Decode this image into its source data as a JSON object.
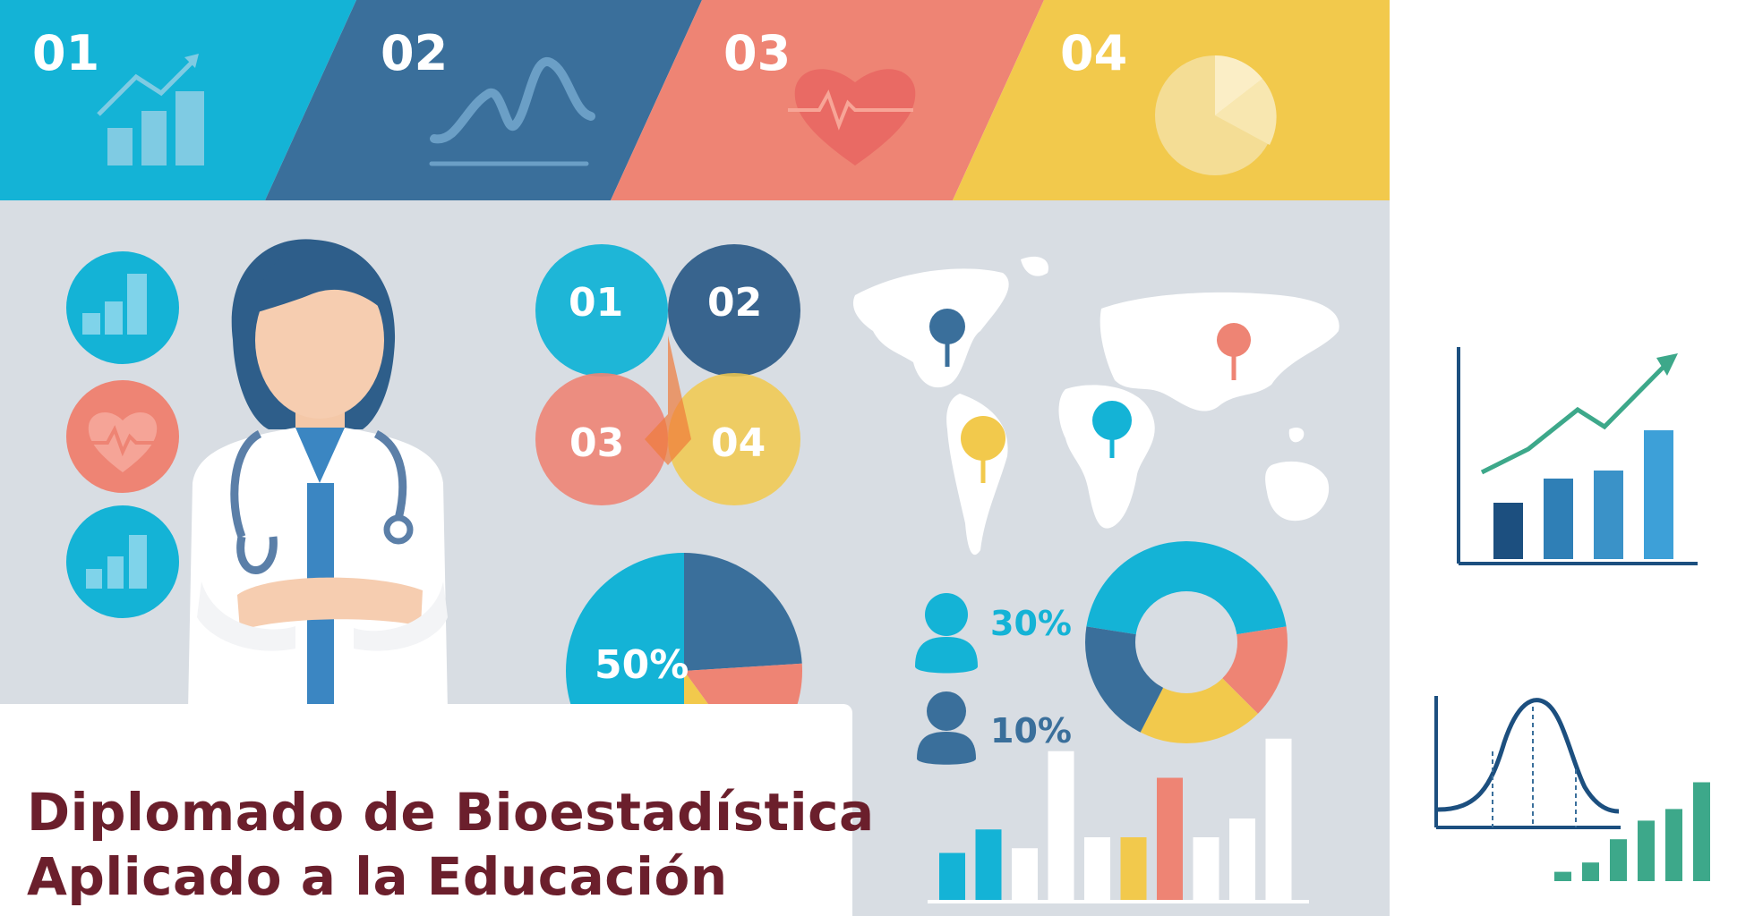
{
  "colors": {
    "cyan": "#14b3d6",
    "navy": "#3a6f9b",
    "coral": "#ee8474",
    "yellow": "#f2c94c",
    "panel_gray": "#d8dde3",
    "title_maroon": "#6b1f2c",
    "dark_blue": "#1c4f7f",
    "green": "#3da88a"
  },
  "banner": {
    "steps": [
      {
        "number": "01",
        "icon": "growth-chart-icon",
        "color": "#14b3d6"
      },
      {
        "number": "02",
        "icon": "wave-line-icon",
        "color": "#3a6f9b"
      },
      {
        "number": "03",
        "icon": "heartbeat-icon",
        "color": "#ee8474"
      },
      {
        "number": "04",
        "icon": "pie-chart-icon",
        "color": "#f2c94c"
      }
    ]
  },
  "side_icons": [
    "bar-chart-icon",
    "heart-monitor-icon",
    "bar-chart-icon"
  ],
  "venn": {
    "labels": [
      "01",
      "02",
      "03",
      "04"
    ]
  },
  "pie": {
    "label": "50%",
    "slices": [
      50,
      24,
      16,
      10
    ]
  },
  "people_stats": [
    {
      "value": "30%",
      "icon": "person-icon",
      "color": "#14b3d6"
    },
    {
      "value": "10%",
      "icon": "person-icon",
      "color": "#3a6f9b"
    }
  ],
  "donut": {
    "slices": [
      45,
      20,
      20,
      15
    ]
  },
  "bars": {
    "values": [
      30,
      45,
      33,
      95,
      40,
      40,
      78,
      40,
      52,
      103
    ],
    "colors": [
      "#14b3d6",
      "#14b3d6",
      "#ffffff",
      "#ffffff",
      "#ffffff",
      "#f2c94c",
      "#ee8474",
      "#ffffff",
      "#ffffff",
      "#ffffff"
    ]
  },
  "map": {
    "pins": [
      {
        "region": "north-america",
        "color": "#3a6f9b"
      },
      {
        "region": "south-america",
        "color": "#f2c94c"
      },
      {
        "region": "africa",
        "color": "#14b3d6"
      },
      {
        "region": "asia",
        "color": "#ee8474"
      }
    ]
  },
  "side_chart_growth": {
    "bars": [
      35,
      50,
      55,
      80
    ]
  },
  "side_chart_bell": {
    "bars": [
      8,
      16,
      36,
      52,
      62,
      85
    ]
  },
  "title": {
    "line1": "Diplomado de Bioestadística",
    "line2": "Aplicado a la Educación"
  }
}
